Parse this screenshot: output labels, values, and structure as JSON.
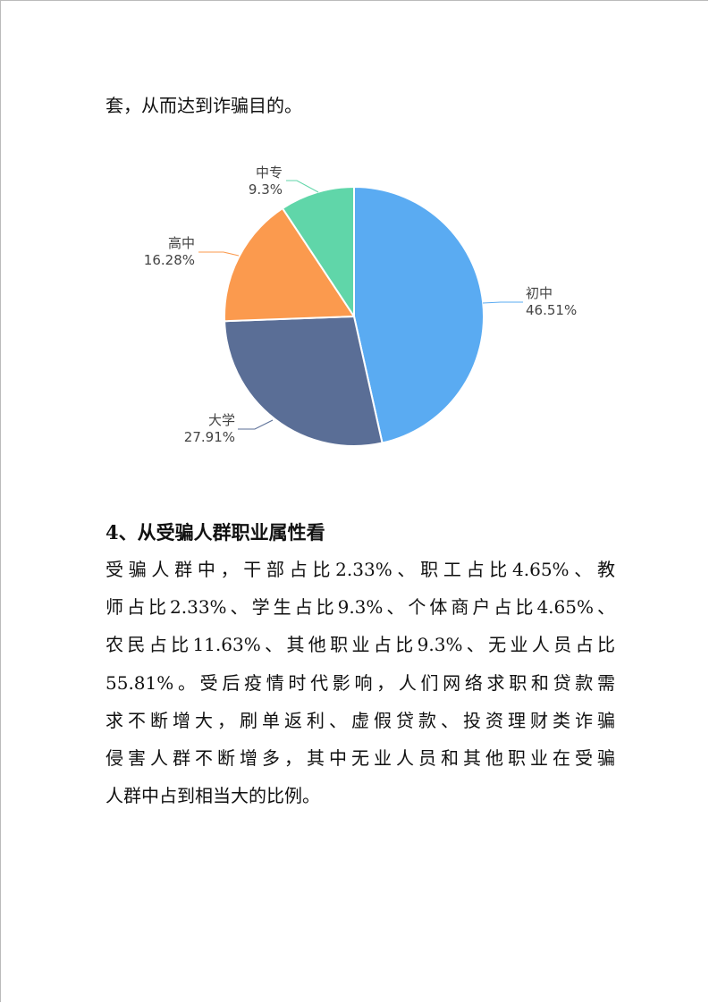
{
  "intro_line": "套，从而达到诈骗目的。",
  "chart_data": {
    "type": "pie",
    "start_angle": "12 o'clock, clockwise",
    "slices": [
      {
        "label": "初中",
        "value": 46.51,
        "value_label": "46.51%",
        "color": "#5aabf2"
      },
      {
        "label": "大学",
        "value": 27.91,
        "value_label": "27.91%",
        "color": "#5a6e96"
      },
      {
        "label": "高中",
        "value": 16.28,
        "value_label": "16.28%",
        "color": "#fb9a4e"
      },
      {
        "label": "中专",
        "value": 9.3,
        "value_label": "9.3%",
        "color": "#60d6a9"
      }
    ]
  },
  "section": {
    "heading": "4、从受骗人群职业属性看",
    "lines": [
      " 受骗人群中，干部占比2.33%、职工占比4.65%、教",
      "师占比2.33%、学生占比9.3%、个体商户占比4.65%、",
      "农民占比11.63%、其他职业占比9.3%、无业人员占比",
      "55.81%。受后疫情时代影响，人们网络求职和贷款需",
      "求不断增大，刷单返利、虚假贷款、投资理财类诈骗",
      "侵害人群不断增多，其中无业人员和其他职业在受骗",
      "人群中占到相当大的比例。"
    ]
  }
}
